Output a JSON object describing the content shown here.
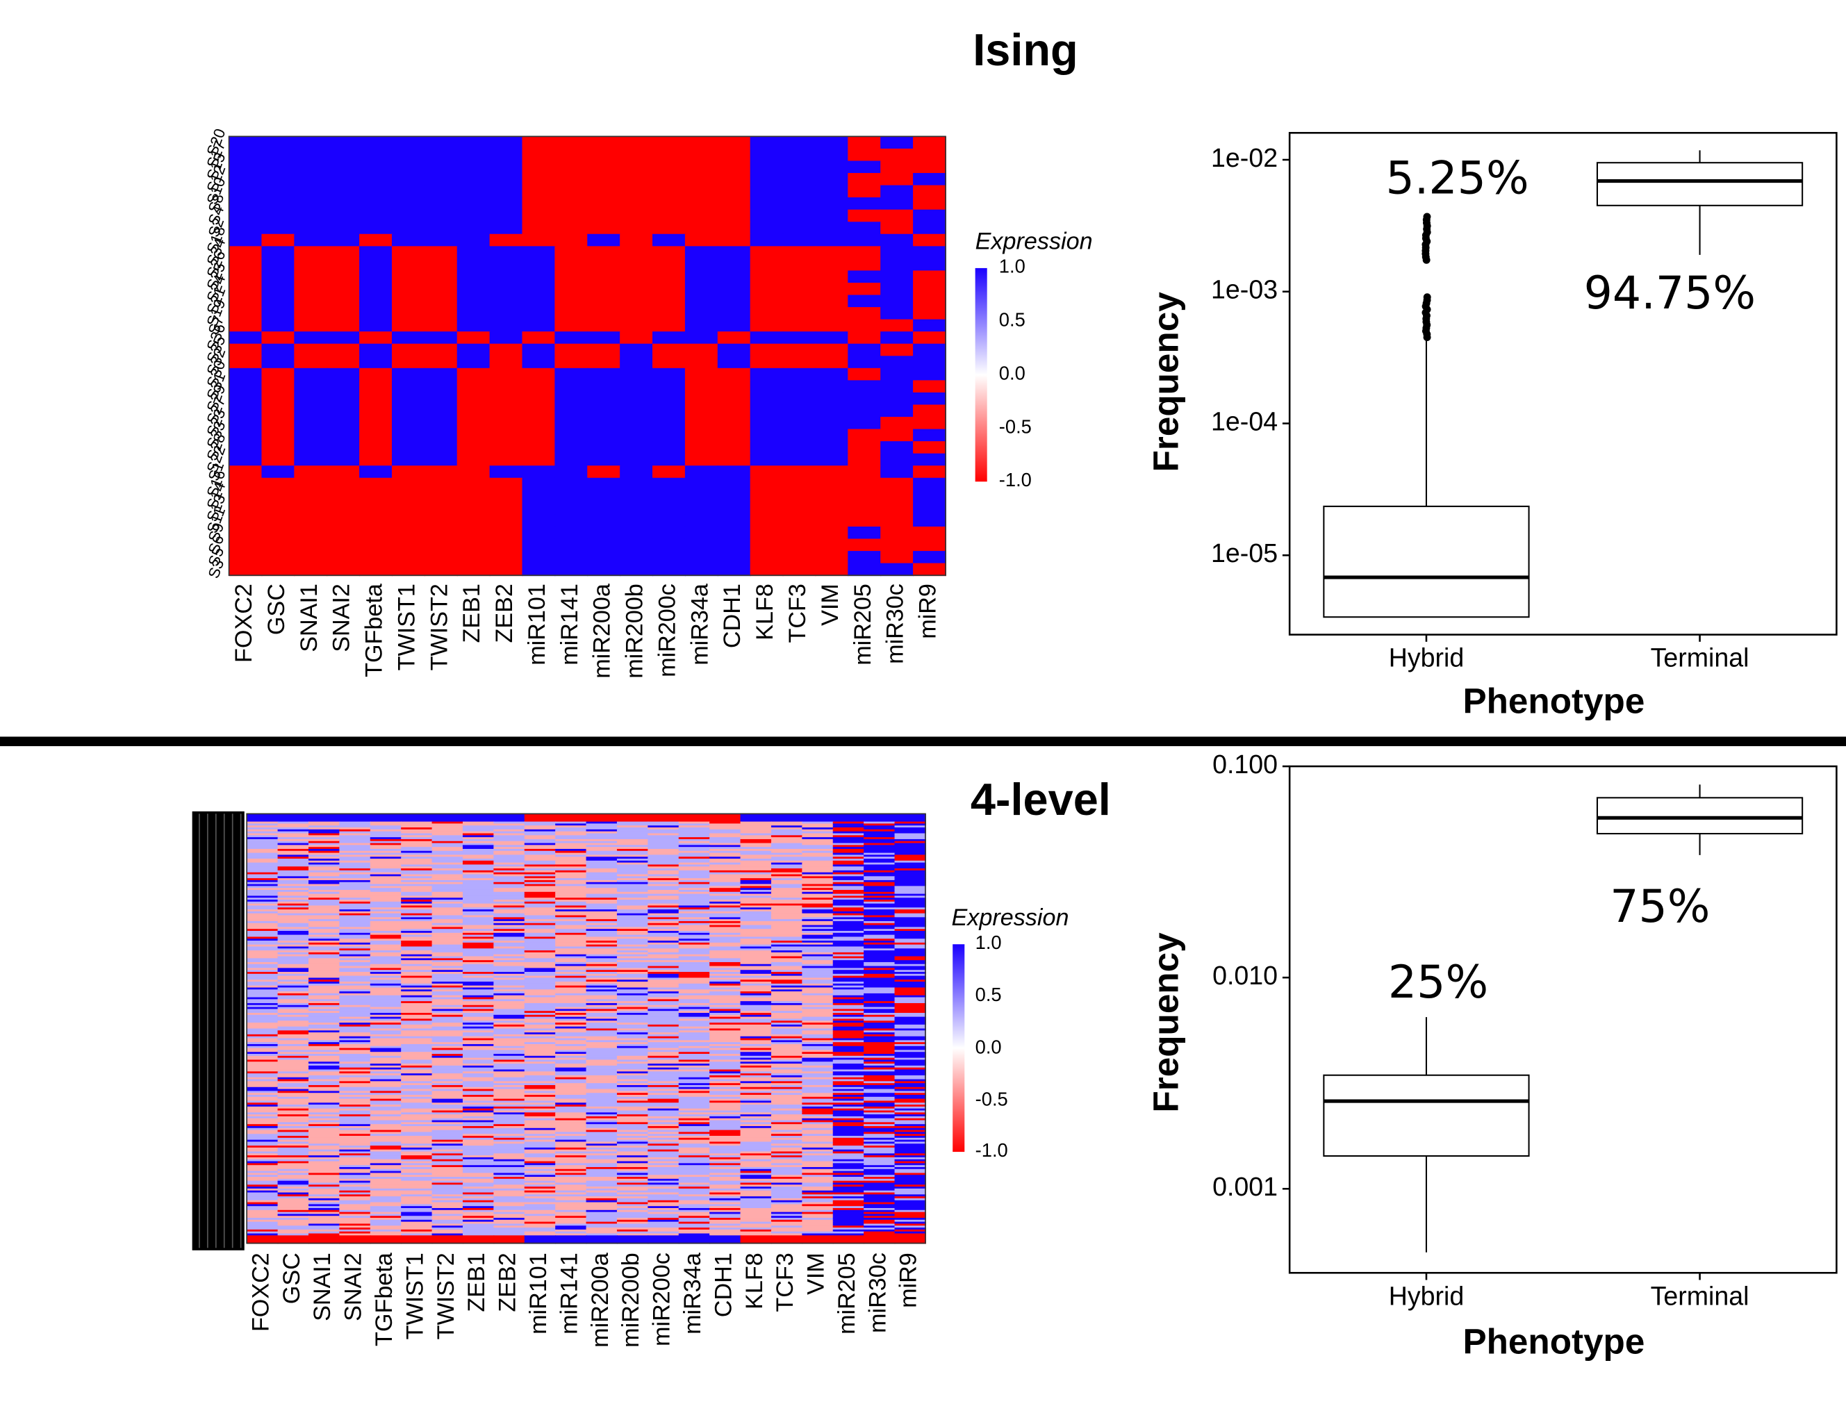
{
  "titles": {
    "top": "Ising",
    "bottom": "4-level"
  },
  "colors": {
    "high": "#1a00ff",
    "mid": "#ffffff",
    "low": "#ff0000",
    "separator": "#000000"
  },
  "chart_data": [
    {
      "type": "heatmap",
      "panel": "ising-heatmap",
      "legend": {
        "title": "Expression",
        "ticks": [
          "1.0",
          "0.5",
          "0.0",
          "-0.5",
          "-1.0"
        ],
        "range": [
          -1,
          1
        ]
      },
      "columns": [
        "FOXC2",
        "GSC",
        "SNAI1",
        "SNAI2",
        "TGFbeta",
        "TWIST1",
        "TWIST2",
        "ZEB1",
        "ZEB2",
        "miR101",
        "miR141",
        "miR200a",
        "miR200b",
        "miR200c",
        "miR34a",
        "CDH1",
        "KLF8",
        "TCF3",
        "VIM",
        "miR205",
        "miR30c",
        "miR9"
      ],
      "rows": [
        "S20",
        "S17",
        "S15",
        "S12",
        "S10",
        "S8",
        "S4",
        "S2",
        "S18",
        "S34",
        "S26",
        "S25",
        "S24",
        "S21",
        "S19",
        "S7",
        "S36",
        "S35",
        "S32",
        "S30",
        "S31",
        "S29",
        "S27",
        "S23",
        "S33",
        "S28",
        "S22",
        "S1",
        "S16",
        "S14",
        "S13",
        "S11",
        "S9",
        "S6",
        "S5",
        "S3"
      ],
      "row_groups": [
        {
          "rows": 8,
          "pattern": [
            1,
            1,
            1,
            1,
            1,
            1,
            1,
            1,
            1,
            -1,
            -1,
            -1,
            -1,
            -1,
            -1,
            -1,
            1,
            1,
            1,
            0,
            0,
            0
          ]
        },
        {
          "rows": 1,
          "pattern": [
            1,
            -1,
            1,
            1,
            -1,
            1,
            1,
            1,
            -1,
            -1,
            -1,
            1,
            -1,
            1,
            -1,
            -1,
            1,
            1,
            1,
            0,
            0,
            0
          ]
        },
        {
          "rows": 7,
          "pattern": [
            -1,
            1,
            -1,
            -1,
            1,
            -1,
            -1,
            1,
            1,
            1,
            -1,
            -1,
            -1,
            -1,
            1,
            1,
            -1,
            -1,
            -1,
            0,
            0,
            0
          ]
        },
        {
          "rows": 1,
          "pattern": [
            1,
            -1,
            1,
            1,
            -1,
            1,
            1,
            -1,
            1,
            -1,
            1,
            1,
            -1,
            1,
            1,
            -1,
            1,
            1,
            1,
            0,
            0,
            0
          ]
        },
        {
          "rows": 2,
          "pattern": [
            -1,
            1,
            -1,
            -1,
            1,
            -1,
            -1,
            1,
            -1,
            1,
            -1,
            -1,
            1,
            -1,
            -1,
            1,
            -1,
            -1,
            -1,
            0,
            0,
            0
          ]
        },
        {
          "rows": 8,
          "pattern": [
            1,
            -1,
            1,
            1,
            -1,
            1,
            1,
            -1,
            -1,
            -1,
            1,
            1,
            1,
            1,
            -1,
            -1,
            1,
            1,
            1,
            0,
            0,
            0
          ]
        },
        {
          "rows": 1,
          "pattern": [
            -1,
            1,
            -1,
            -1,
            1,
            -1,
            -1,
            -1,
            1,
            1,
            1,
            -1,
            1,
            -1,
            1,
            1,
            -1,
            -1,
            -1,
            0,
            0,
            0
          ]
        },
        {
          "rows": 8,
          "pattern": [
            -1,
            -1,
            -1,
            -1,
            -1,
            -1,
            -1,
            -1,
            -1,
            1,
            1,
            1,
            1,
            1,
            1,
            1,
            -1,
            -1,
            -1,
            0,
            0,
            0
          ]
        }
      ]
    },
    {
      "type": "box",
      "panel": "ising-boxplot",
      "xlabel": "Phenotype",
      "ylabel": "Frequency",
      "yscale": "log",
      "ylim": [
        2.5e-06,
        0.016
      ],
      "yticks": [
        1e-05,
        0.0001,
        0.001,
        0.01
      ],
      "ytick_labels": [
        "1e-05",
        "1e-04",
        "1e-03",
        "1e-02"
      ],
      "categories": [
        "Hybrid",
        "Terminal"
      ],
      "boxes": [
        {
          "category": "Hybrid",
          "whisker_low": 3.4e-06,
          "q1": 3.4e-06,
          "median": 6.8e-06,
          "q3": 2.35e-05,
          "whisker_high": 0.00045,
          "outliers_range": [
            0.00045,
            0.0037
          ]
        },
        {
          "category": "Terminal",
          "whisker_low": 0.0019,
          "q1": 0.0045,
          "median": 0.0069,
          "q3": 0.0095,
          "whisker_high": 0.0118
        }
      ],
      "annotations": [
        {
          "text": "5.25%",
          "category": "Hybrid"
        },
        {
          "text": "94.75%",
          "category": "Terminal"
        }
      ]
    },
    {
      "type": "heatmap",
      "panel": "four-level-heatmap",
      "legend": {
        "title": "Expression",
        "ticks": [
          "1.0",
          "0.5",
          "0.0",
          "-0.5",
          "-1.0"
        ],
        "range": [
          -1,
          1
        ]
      },
      "columns": [
        "FOXC2",
        "GSC",
        "SNAI1",
        "SNAI2",
        "TGFbeta",
        "TWIST1",
        "TWIST2",
        "ZEB1",
        "ZEB2",
        "miR101",
        "miR141",
        "miR200a",
        "miR200b",
        "miR200c",
        "miR34a",
        "CDH1",
        "KLF8",
        "TCF3",
        "VIM",
        "miR205",
        "miR30c",
        "miR9"
      ],
      "column_means": [
        -0.05,
        0.05,
        0.35,
        -0.1,
        0.25,
        0.2,
        -0.1,
        -0.3,
        -0.1,
        0.1,
        0.35,
        -0.25,
        -0.15,
        -0.15,
        -0.3,
        0.1,
        0.25,
        0.2,
        0.25,
        -0.05,
        0.0,
        0.0
      ]
    },
    {
      "type": "box",
      "panel": "four-level-boxplot",
      "xlabel": "Phenotype",
      "ylabel": "Frequency",
      "yscale": "log",
      "ylim": [
        0.0004,
        0.1
      ],
      "yticks": [
        0.001,
        0.01,
        0.1
      ],
      "ytick_labels": [
        "0.001",
        "0.010",
        "0.100"
      ],
      "categories": [
        "Hybrid",
        "Terminal"
      ],
      "boxes": [
        {
          "category": "Hybrid",
          "whisker_low": 0.0005,
          "q1": 0.00143,
          "median": 0.0026,
          "q3": 0.00345,
          "whisker_high": 0.0065
        },
        {
          "category": "Terminal",
          "whisker_low": 0.038,
          "q1": 0.048,
          "median": 0.057,
          "q3": 0.071,
          "whisker_high": 0.082
        }
      ],
      "annotations": [
        {
          "text": "25%",
          "category": "Hybrid"
        },
        {
          "text": "75%",
          "category": "Terminal"
        }
      ]
    }
  ]
}
